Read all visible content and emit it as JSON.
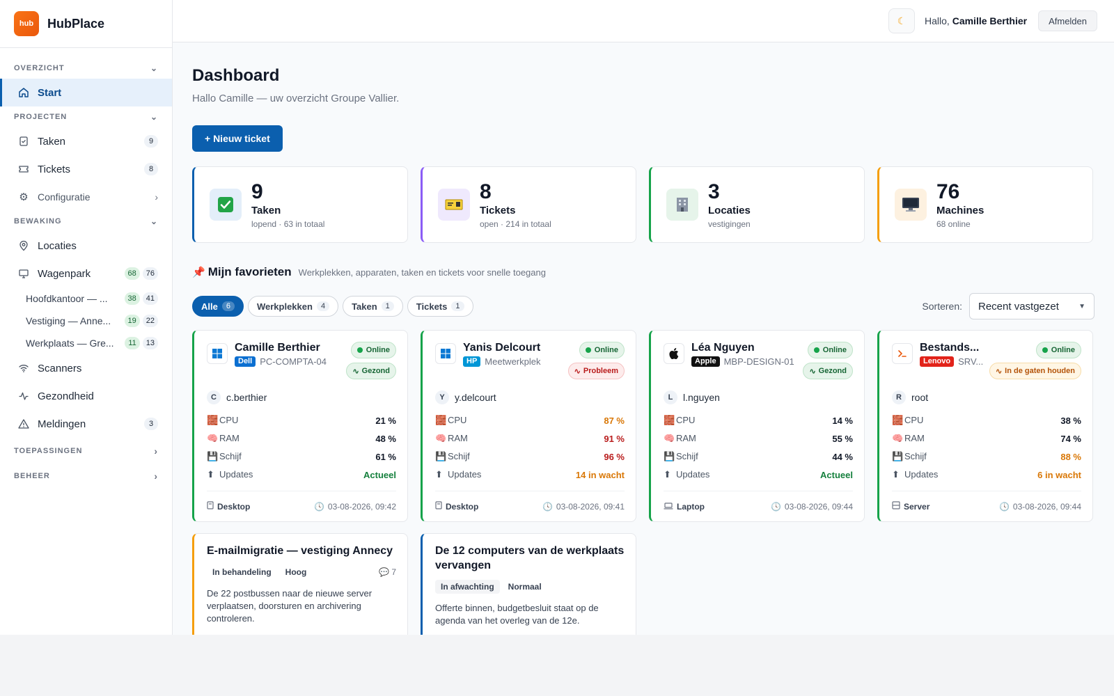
{
  "brand": {
    "logo_text": "hub",
    "name": "HubPlace"
  },
  "sidebar": {
    "overzicht": {
      "label": "OVERZICHT",
      "start": "Start"
    },
    "projecten": {
      "label": "PROJECTEN",
      "taken": {
        "label": "Taken",
        "count": "9"
      },
      "tickets": {
        "label": "Tickets",
        "count": "8"
      },
      "configuratie": "Configuratie"
    },
    "bewaking": {
      "label": "BEWAKING",
      "locaties": "Locaties",
      "wagenpark": {
        "label": "Wagenpark",
        "online": "68",
        "total": "76"
      },
      "sub": [
        {
          "label": "Hoofdkantoor — ...",
          "online": "38",
          "total": "41"
        },
        {
          "label": "Vestiging — Anne...",
          "online": "19",
          "total": "22"
        },
        {
          "label": "Werkplaats — Gre...",
          "online": "11",
          "total": "13"
        }
      ],
      "scanners": "Scanners",
      "gezondheid": "Gezondheid",
      "meldingen": {
        "label": "Meldingen",
        "count": "3"
      }
    },
    "toepassingen": "TOEPASSINGEN",
    "beheer": "BEHEER"
  },
  "topbar": {
    "greeting_prefix": "Hallo,",
    "user": "Camille Berthier",
    "logout": "Afmelden"
  },
  "page": {
    "title": "Dashboard",
    "subtitle": "Hallo Camille — uw overzicht Groupe Vallier.",
    "new_ticket": "+ Nieuw ticket"
  },
  "stats": [
    {
      "value": "9",
      "label": "Taken",
      "sub": "lopend · 63 in totaal",
      "icon": "check-icon",
      "accent": "#0b5fae"
    },
    {
      "value": "8",
      "label": "Tickets",
      "sub": "open · 214 in totaal",
      "icon": "ticket-icon",
      "accent": "#8b5cf6"
    },
    {
      "value": "3",
      "label": "Locaties",
      "sub": "vestigingen",
      "icon": "building-icon",
      "accent": "#16a34a"
    },
    {
      "value": "76",
      "label": "Machines",
      "sub": "68 online",
      "icon": "monitor-icon",
      "accent": "#f59e0b"
    }
  ],
  "favorites": {
    "title": "Mijn favorieten",
    "subtitle": "Werkplekken, apparaten, taken en tickets voor snelle toegang",
    "filters": [
      {
        "label": "Alle",
        "count": "6"
      },
      {
        "label": "Werkplekken",
        "count": "4"
      },
      {
        "label": "Taken",
        "count": "1"
      },
      {
        "label": "Tickets",
        "count": "1"
      }
    ],
    "sort_label": "Sorteren:",
    "sort_value": "Recent vastgezet"
  },
  "devices": [
    {
      "name": "Camille Berthier",
      "brand": "Dell",
      "brand_color": "#0b6fd1",
      "host": "PC-COMPTA-04",
      "os_icon": "windows-icon",
      "status": "Online",
      "health": "Gezond",
      "health_kind": "ok",
      "user_initial": "C",
      "user": "c.berthier",
      "cpu": "21 %",
      "ram": "48 %",
      "disk": "61 %",
      "updates": "Actueel",
      "cpu_kind": "",
      "ram_kind": "",
      "disk_kind": "",
      "updates_kind": "good",
      "type": "Desktop",
      "type_icon": "desktop-icon",
      "time": "03-08-2026, 09:42",
      "accent": "#16a34a"
    },
    {
      "name": "Yanis Delcourt",
      "brand": "HP",
      "brand_color": "#0096d6",
      "host": "Meetwerkplek",
      "os_icon": "windows-icon",
      "status": "Online",
      "health": "Probleem",
      "health_kind": "bad",
      "user_initial": "Y",
      "user": "y.delcourt",
      "cpu": "87 %",
      "ram": "91 %",
      "disk": "96 %",
      "updates": "14 in wacht",
      "cpu_kind": "warn",
      "ram_kind": "crit",
      "disk_kind": "crit",
      "updates_kind": "warn",
      "type": "Desktop",
      "type_icon": "desktop-icon",
      "time": "03-08-2026, 09:41",
      "accent": "#16a34a"
    },
    {
      "name": "Léa Nguyen",
      "brand": "Apple",
      "brand_color": "#111111",
      "host": "MBP-DESIGN-01",
      "os_icon": "apple-icon",
      "status": "Online",
      "health": "Gezond",
      "health_kind": "ok",
      "user_initial": "L",
      "user": "l.nguyen",
      "cpu": "14 %",
      "ram": "55 %",
      "disk": "44 %",
      "updates": "Actueel",
      "cpu_kind": "",
      "ram_kind": "",
      "disk_kind": "",
      "updates_kind": "good",
      "type": "Laptop",
      "type_icon": "laptop-icon",
      "time": "03-08-2026, 09:44",
      "accent": "#16a34a"
    },
    {
      "name": "Bestands...",
      "brand": "Lenovo",
      "brand_color": "#e2231a",
      "host": "SRV...",
      "os_icon": "terminal-icon",
      "status": "Online",
      "health": "In de gaten houden",
      "health_kind": "warn",
      "user_initial": "R",
      "user": "root",
      "cpu": "38 %",
      "ram": "74 %",
      "disk": "88 %",
      "updates": "6 in wacht",
      "cpu_kind": "",
      "ram_kind": "",
      "disk_kind": "warn",
      "updates_kind": "warn",
      "type": "Server",
      "type_icon": "server-icon",
      "time": "03-08-2026, 09:44",
      "accent": "#16a34a"
    }
  ],
  "metric_labels": {
    "cpu": "CPU",
    "ram": "RAM",
    "disk": "Schijf",
    "updates": "Updates"
  },
  "tasks": [
    {
      "title": "E-mailmigratie — vestiging Annecy",
      "status": "In behandeling",
      "priority": "Hoog",
      "comments": "7",
      "desc": "De 22 postbussen naar de nieuwe server verplaatsen, doorsturen en archivering controleren.",
      "accent": "#f59e0b"
    },
    {
      "title": "De 12 computers van de werkplaats vervangen",
      "status": "In afwachting",
      "priority": "Normaal",
      "comments": "",
      "desc": "Offerte binnen, budgetbesluit staat op de agenda van het overleg van de 12e.",
      "accent": "#0b5fae"
    }
  ]
}
